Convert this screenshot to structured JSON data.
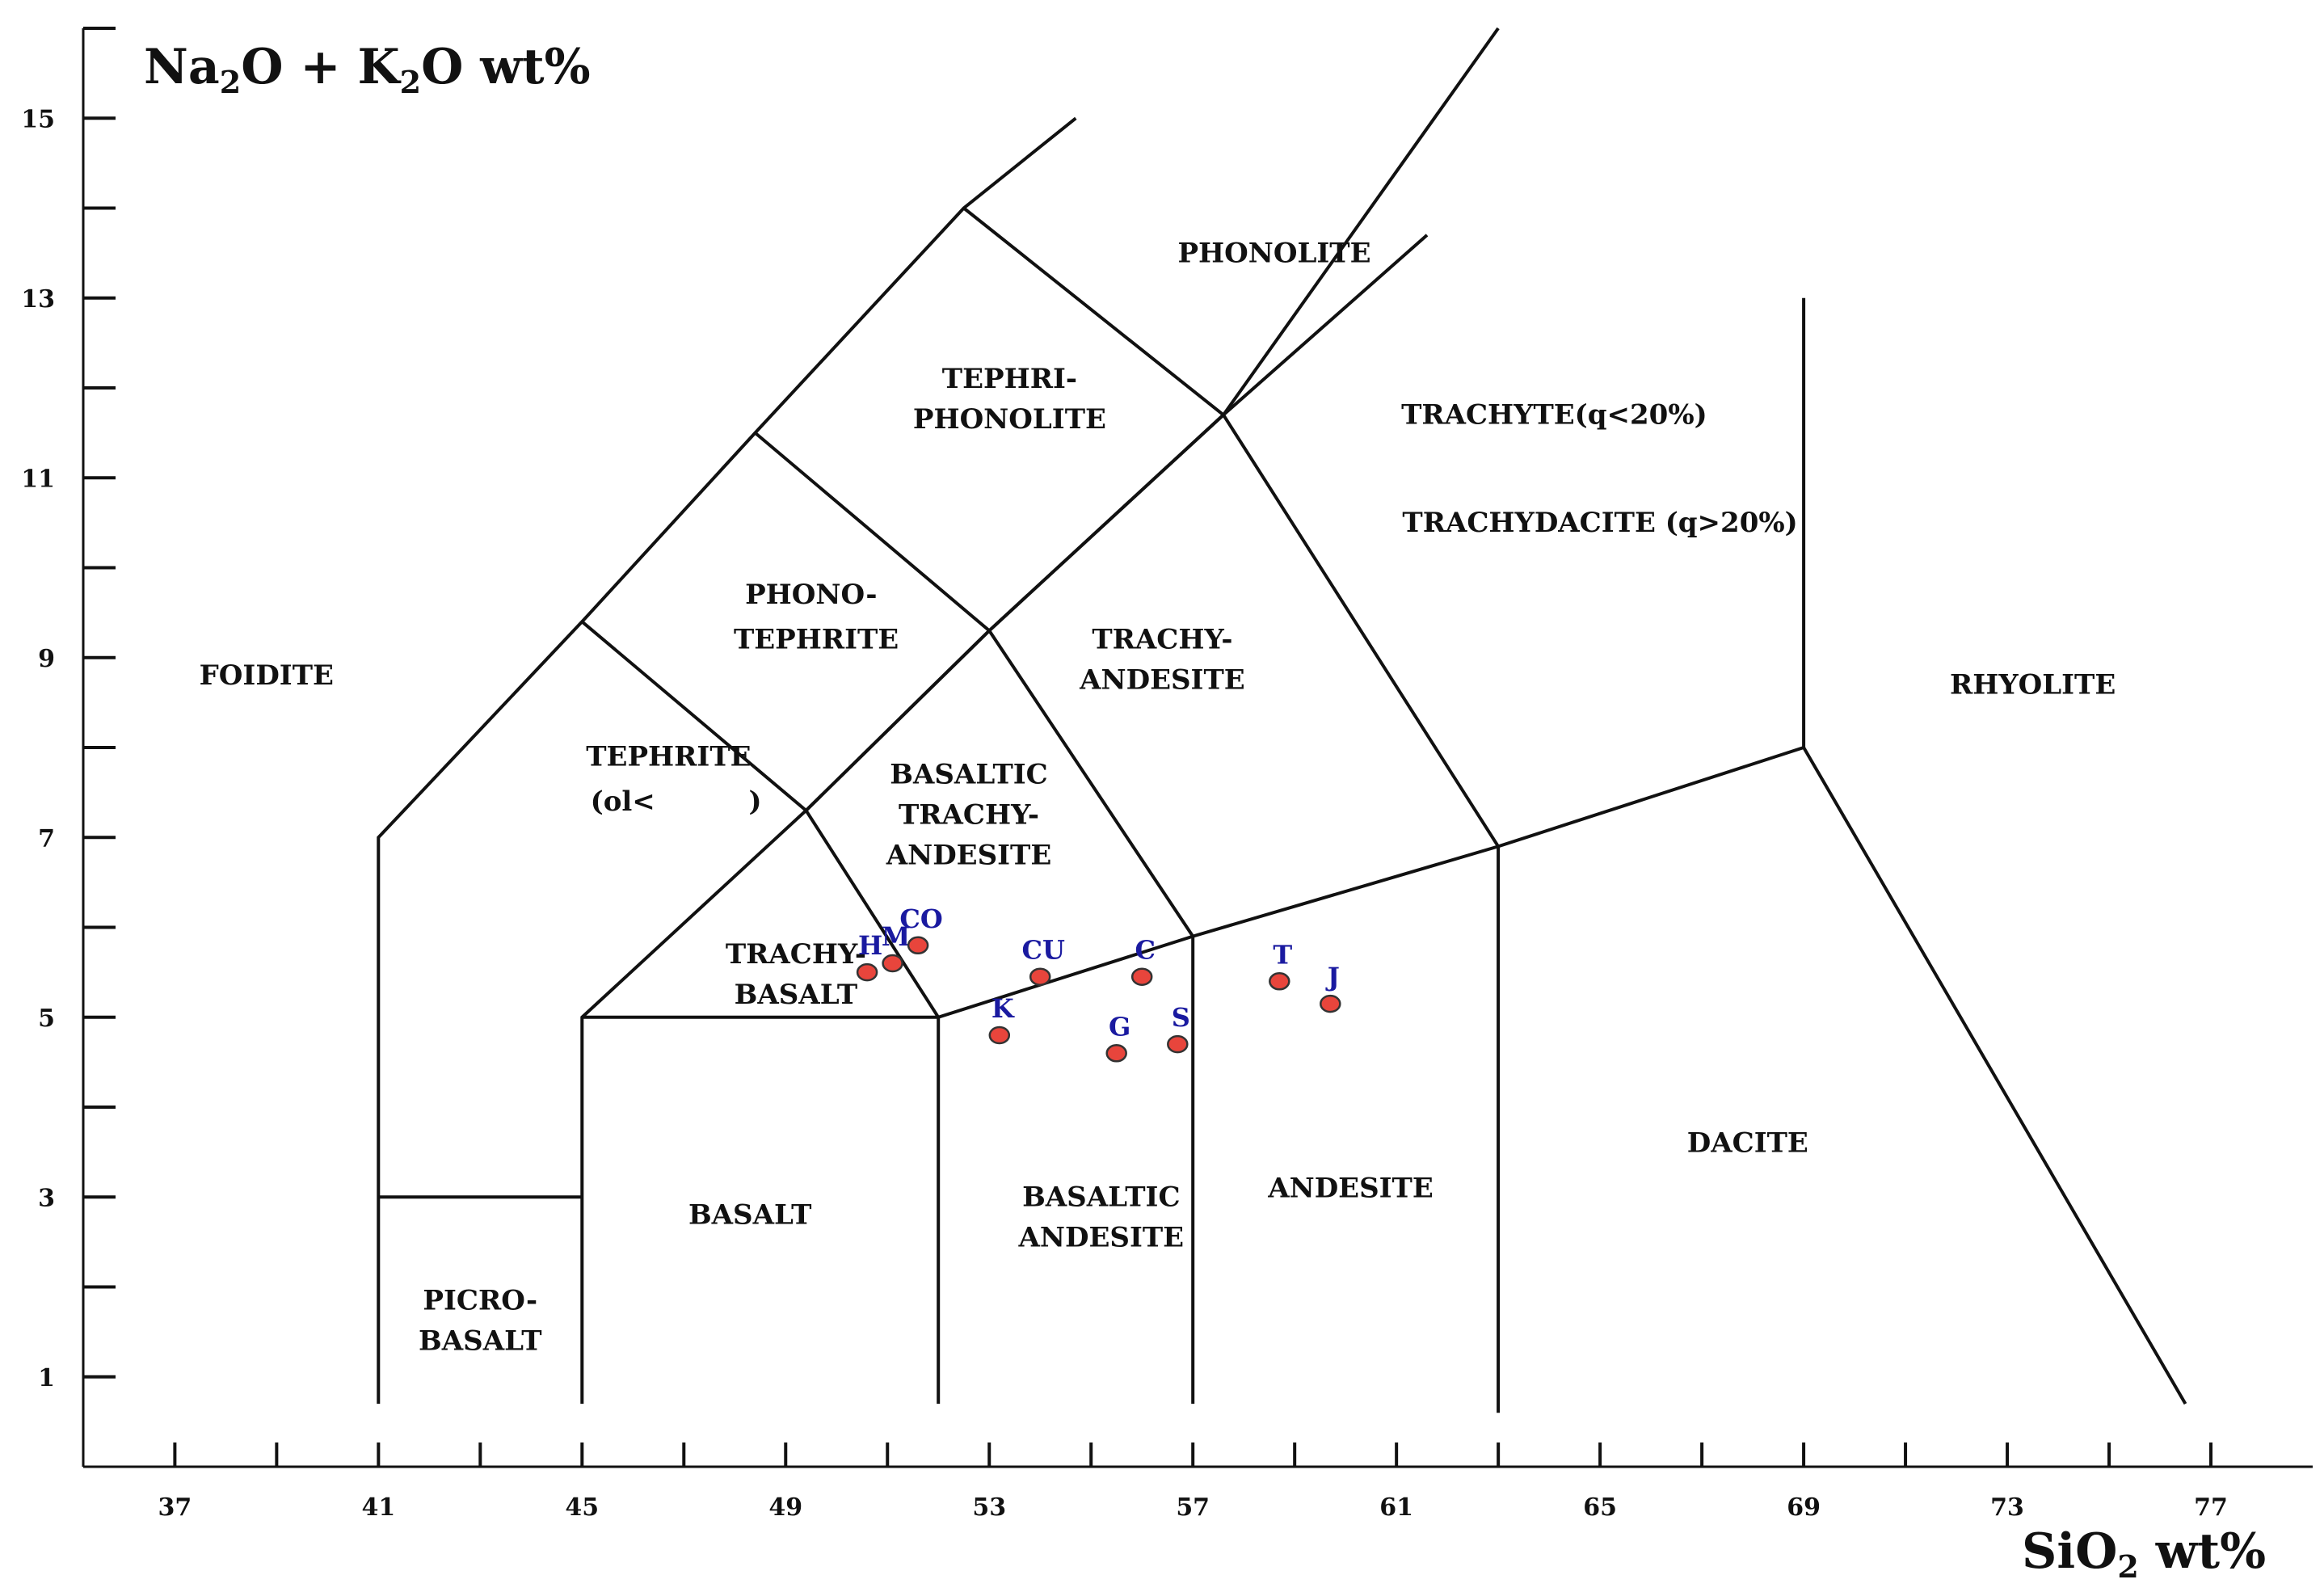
{
  "chart_data": {
    "type": "scatter",
    "title": "",
    "ylabel_parts": {
      "a": "Na",
      "s1": "2",
      "b": "O + K",
      "s2": "2",
      "c": "O wt%"
    },
    "xlabel_parts": {
      "a": "SiO",
      "s1": "2",
      "b": " wt%"
    },
    "xlim": [
      35.2,
      79
    ],
    "ylim": [
      0,
      16
    ],
    "x_ticks": [
      37,
      41,
      45,
      49,
      53,
      57,
      61,
      65,
      69,
      73,
      77
    ],
    "y_ticks": [
      1,
      3,
      5,
      7,
      9,
      11,
      13,
      15
    ],
    "grid": false,
    "field_boundaries": [
      [
        [
          41,
          0.7
        ],
        [
          41,
          7
        ],
        [
          45,
          9.4
        ],
        [
          48.4,
          11.5
        ],
        [
          52.5,
          14
        ],
        [
          54.7,
          15
        ]
      ],
      [
        [
          41,
          3
        ],
        [
          45,
          3
        ]
      ],
      [
        [
          45,
          0.7
        ],
        [
          45,
          5
        ],
        [
          49.4,
          7.3
        ],
        [
          53,
          9.3
        ],
        [
          57.6,
          11.7
        ],
        [
          63,
          16
        ]
      ],
      [
        [
          45,
          5
        ],
        [
          52,
          5
        ],
        [
          57,
          5.9
        ],
        [
          63,
          6.9
        ],
        [
          69,
          8
        ]
      ],
      [
        [
          52,
          0.7
        ],
        [
          52,
          5
        ]
      ],
      [
        [
          57,
          0.7
        ],
        [
          57,
          5.9
        ]
      ],
      [
        [
          63,
          0.6
        ],
        [
          63,
          6.9
        ]
      ],
      [
        [
          69,
          8
        ],
        [
          69,
          13
        ]
      ],
      [
        [
          69,
          8
        ],
        [
          76.5,
          0.7
        ]
      ],
      [
        [
          49.4,
          7.3
        ],
        [
          52,
          5
        ]
      ],
      [
        [
          45,
          9.4
        ],
        [
          49.4,
          7.3
        ],
        [
          53,
          9.3
        ],
        [
          57.6,
          11.7
        ],
        [
          61.6,
          13.7
        ]
      ],
      [
        [
          48.4,
          11.5
        ],
        [
          53,
          9.3
        ],
        [
          57,
          5.9
        ]
      ],
      [
        [
          52.5,
          14
        ],
        [
          57.6,
          11.7
        ],
        [
          63,
          6.9
        ]
      ]
    ],
    "fields": [
      {
        "name": "FOIDITE",
        "x": 38.8,
        "y": 8.7
      },
      {
        "name": "PHONOLITE",
        "x": 58.6,
        "y": 13.4
      },
      {
        "name": "TEPHRI-",
        "x": 53.4,
        "y": 12
      },
      {
        "name": "PHONOLITE",
        "x": 53.4,
        "y": 11.55
      },
      {
        "name": "TRACHYTE(q<20%)",
        "x": 64.1,
        "y": 11.6
      },
      {
        "name": "TRACHYDACITE (q>20%)",
        "x": 65,
        "y": 10.4
      },
      {
        "name": "PHONO-",
        "x": 49.5,
        "y": 9.6
      },
      {
        "name": "TEPHRITE",
        "x": 49.6,
        "y": 9.1
      },
      {
        "name": "TRACHY-",
        "x": 56.4,
        "y": 9.1
      },
      {
        "name": "ANDESITE",
        "x": 56.4,
        "y": 8.65
      },
      {
        "name": "RHYOLITE",
        "x": 73.5,
        "y": 8.6
      },
      {
        "name": "TEPHRITE",
        "x": 46.7,
        "y": 7.8
      },
      {
        "name": "(ol<",
        "x": 45.8,
        "y": 7.3
      },
      {
        "name": ")",
        "x": 48.4,
        "y": 7.3
      },
      {
        "name": "BASALTIC",
        "x": 52.6,
        "y": 7.6
      },
      {
        "name": "TRACHY-",
        "x": 52.6,
        "y": 7.15
      },
      {
        "name": "ANDESITE",
        "x": 52.6,
        "y": 6.7
      },
      {
        "name": "TRACHY-",
        "x": 49.2,
        "y": 5.6
      },
      {
        "name": "BASALT",
        "x": 49.2,
        "y": 5.15
      },
      {
        "name": "BASALT",
        "x": 48.3,
        "y": 2.7
      },
      {
        "name": "BASALTIC",
        "x": 55.2,
        "y": 2.9
      },
      {
        "name": "ANDESITE",
        "x": 55.2,
        "y": 2.45
      },
      {
        "name": "ANDESITE",
        "x": 60.1,
        "y": 3
      },
      {
        "name": "DACITE",
        "x": 67.9,
        "y": 3.5
      },
      {
        "name": "PICRO-",
        "x": 43,
        "y": 1.75
      },
      {
        "name": "BASALT",
        "x": 43,
        "y": 1.3
      }
    ],
    "samples": [
      {
        "label": "H",
        "x": 50.6,
        "y": 5.5
      },
      {
        "label": "M",
        "x": 51.1,
        "y": 5.6
      },
      {
        "label": "CO",
        "x": 51.6,
        "y": 5.8
      },
      {
        "label": "CU",
        "x": 54,
        "y": 5.45
      },
      {
        "label": "C",
        "x": 56,
        "y": 5.45
      },
      {
        "label": "K",
        "x": 53.2,
        "y": 4.8
      },
      {
        "label": "G",
        "x": 55.5,
        "y": 4.6
      },
      {
        "label": "S",
        "x": 56.7,
        "y": 4.7
      },
      {
        "label": "T",
        "x": 58.7,
        "y": 5.4
      },
      {
        "label": "J",
        "x": 59.7,
        "y": 5.15
      }
    ],
    "marker_color": "#e8453c",
    "label_color": "#1a1aa0"
  }
}
